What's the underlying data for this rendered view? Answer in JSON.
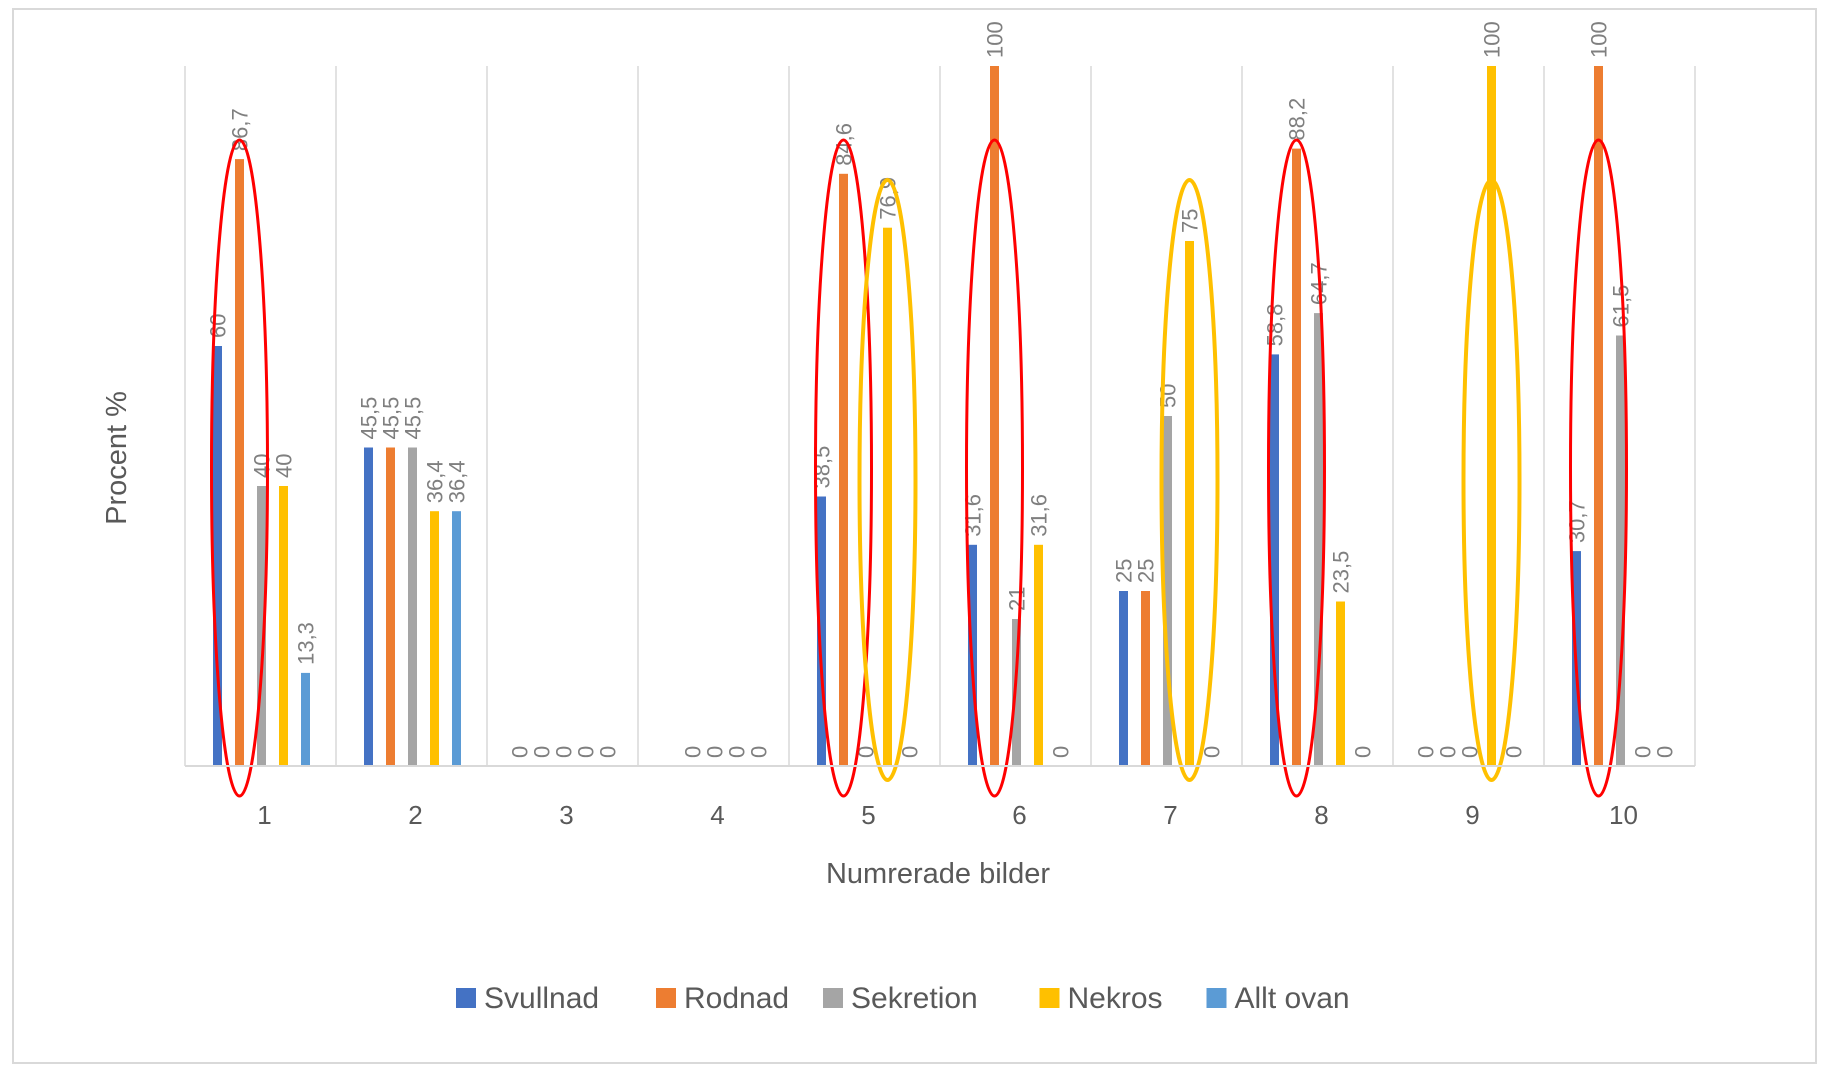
{
  "chart_data": {
    "type": "bar",
    "title": "",
    "xlabel": "Numrerade bilder",
    "ylabel": "Procent %",
    "ylim": [
      0,
      100
    ],
    "grid": "vertical category separators",
    "legend_position": "bottom",
    "categories": [
      "1",
      "2",
      "3",
      "4",
      "5",
      "6",
      "7",
      "8",
      "9",
      "10"
    ],
    "series": [
      {
        "name": "Svullnad",
        "color": "#4472c4",
        "values": [
          60,
          45.5,
          0,
          null,
          38.5,
          31.6,
          25,
          58.8,
          0,
          30.7
        ],
        "labels": [
          "60",
          "45,5",
          "0",
          "",
          "38,5",
          "31,6",
          "25",
          "58,8",
          "0",
          "30,7"
        ]
      },
      {
        "name": "Rodnad",
        "color": "#ed7d31",
        "values": [
          86.7,
          45.5,
          0,
          0,
          84.6,
          100,
          25,
          88.2,
          0,
          100
        ],
        "labels": [
          "86,7",
          "45,5",
          "0",
          "0",
          "84,6",
          "100",
          "25",
          "88,2",
          "0",
          "100"
        ]
      },
      {
        "name": "Sekretion",
        "color": "#a5a5a5",
        "values": [
          40,
          45.5,
          0,
          0,
          0,
          21,
          50,
          64.7,
          0,
          61.5
        ],
        "labels": [
          "40",
          "45,5",
          "0",
          "0",
          "0",
          "21",
          "50",
          "64,7",
          "0",
          "61,5"
        ]
      },
      {
        "name": "Nekros",
        "color": "#ffc000",
        "values": [
          40,
          36.4,
          0,
          0,
          76.9,
          31.6,
          75,
          23.5,
          100,
          0
        ],
        "labels": [
          "40",
          "36,4",
          "0",
          "0",
          "76,9",
          "31,6",
          "75",
          "23,5",
          "100",
          "0"
        ]
      },
      {
        "name": "Allt ovan",
        "color": "#5b9bd5",
        "values": [
          13.3,
          36.4,
          0,
          0,
          0,
          0,
          0,
          0,
          0,
          0
        ],
        "labels": [
          "13,3",
          "36,4",
          "0",
          "0",
          "0",
          "0",
          "0",
          "0",
          "0",
          "0"
        ]
      }
    ],
    "annotations": {
      "red_ellipses": [
        "1",
        "5",
        "6",
        "8",
        "10"
      ],
      "yellow_ellipses": [
        "5",
        "7",
        "9"
      ],
      "red_color": "#ff0000",
      "yellow_color": "#ffc000"
    }
  }
}
